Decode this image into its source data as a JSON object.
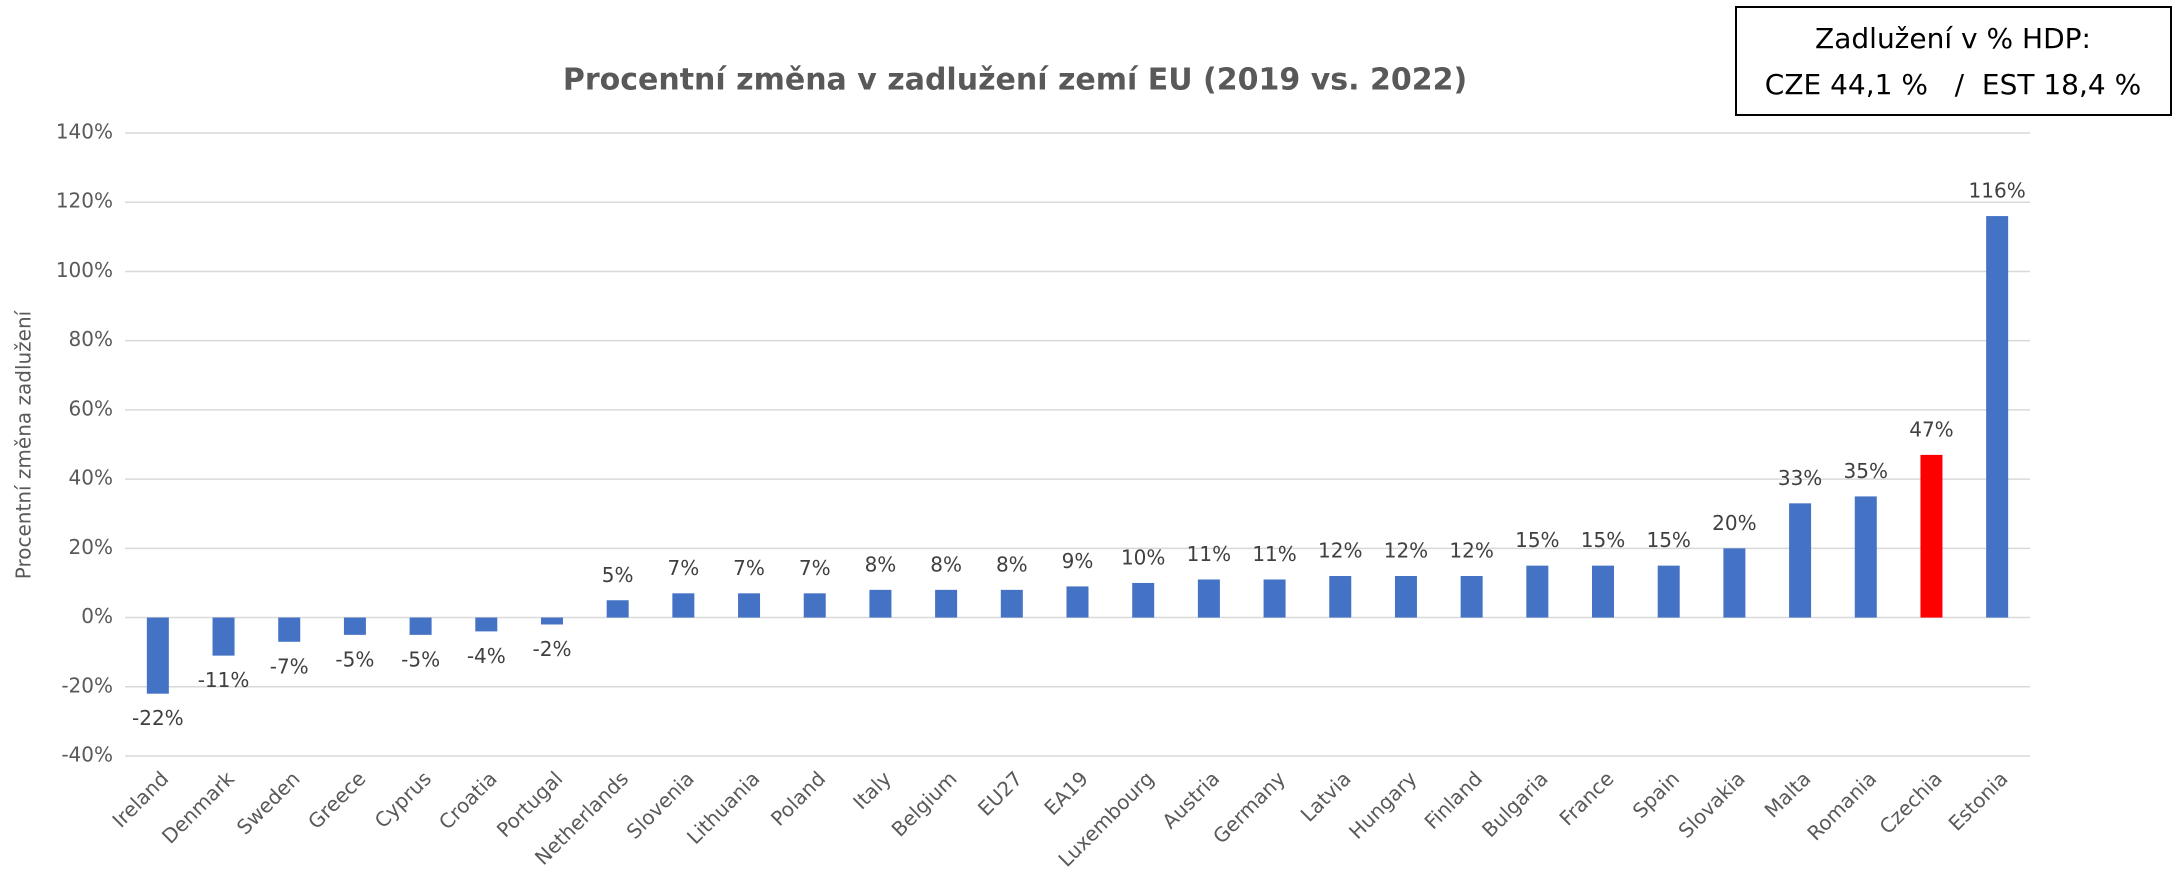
{
  "chart_data": {
    "type": "bar",
    "title": "Procentní změna v zadlužení zemí EU (2019 vs. 2022)",
    "y_label": "Procentní změna zadlužení",
    "annotation": [
      "Zadlužení v % HDP:",
      "CZE 44,1 %   /  EST 18,4 %"
    ],
    "categories": [
      "Ireland",
      "Denmark",
      "Sweden",
      "Greece",
      "Cyprus",
      "Croatia",
      "Portugal",
      "Netherlands",
      "Slovenia",
      "Lithuania",
      "Poland",
      "Italy",
      "Belgium",
      "EU27",
      "EA19",
      "Luxembourg",
      "Austria",
      "Germany",
      "Latvia",
      "Hungary",
      "Finland",
      "Bulgaria",
      "France",
      "Spain",
      "Slovakia",
      "Malta",
      "Romania",
      "Czechia",
      "Estonia"
    ],
    "values": [
      -22,
      -11,
      -7,
      -5,
      -5,
      -4,
      -2,
      5,
      7,
      7,
      7,
      8,
      8,
      8,
      9,
      10,
      11,
      11,
      12,
      12,
      12,
      15,
      15,
      15,
      20,
      33,
      35,
      47,
      116
    ],
    "value_labels": [
      "-22%",
      "-11%",
      "-7%",
      "-5%",
      "-5%",
      "-4%",
      "-2%",
      "5%",
      "7%",
      "7%",
      "7%",
      "8%",
      "8%",
      "8%",
      "9%",
      "10%",
      "11%",
      "11%",
      "12%",
      "12%",
      "12%",
      "15%",
      "15%",
      "15%",
      "20%",
      "33%",
      "35%",
      "47%",
      "116%"
    ],
    "colors": [
      "#4472c4",
      "#4472c4",
      "#4472c4",
      "#4472c4",
      "#4472c4",
      "#4472c4",
      "#4472c4",
      "#4472c4",
      "#4472c4",
      "#4472c4",
      "#4472c4",
      "#4472c4",
      "#4472c4",
      "#4472c4",
      "#4472c4",
      "#4472c4",
      "#4472c4",
      "#4472c4",
      "#4472c4",
      "#4472c4",
      "#4472c4",
      "#4472c4",
      "#4472c4",
      "#4472c4",
      "#4472c4",
      "#4472c4",
      "#4472c4",
      "#ff0000",
      "#4472c4"
    ],
    "ylim": [
      -40,
      140
    ],
    "yticks": [
      {
        "value": -40,
        "label": "-40%"
      },
      {
        "value": -20,
        "label": "-20%"
      },
      {
        "value": 0,
        "label": "0%"
      },
      {
        "value": 20,
        "label": "20%"
      },
      {
        "value": 40,
        "label": "40%"
      },
      {
        "value": 60,
        "label": "60%"
      },
      {
        "value": 80,
        "label": "80%"
      },
      {
        "value": 100,
        "label": "100%"
      },
      {
        "value": 120,
        "label": "120%"
      },
      {
        "value": 140,
        "label": "140%"
      }
    ],
    "grid": true
  }
}
